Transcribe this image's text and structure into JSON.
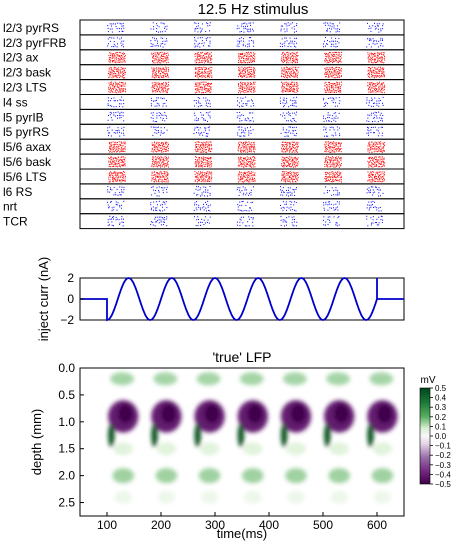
{
  "chart_data": [
    {
      "type": "raster",
      "title": "12.5 Hz stimulus",
      "populations": [
        {
          "name": "l2/3 pyrRS",
          "color": "#0000ff"
        },
        {
          "name": "l2/3 pyrFRB",
          "color": "#0000ff"
        },
        {
          "name": "l2/3 ax",
          "color": "#ff0000"
        },
        {
          "name": "l2/3 bask",
          "color": "#ff0000"
        },
        {
          "name": "l2/3 LTS",
          "color": "#ff0000"
        },
        {
          "name": "l4 ss",
          "color": "#0000ff"
        },
        {
          "name": "l5 pyrIB",
          "color": "#0000ff"
        },
        {
          "name": "l5 pyrRS",
          "color": "#0000ff"
        },
        {
          "name": "l5/6 axax",
          "color": "#ff0000"
        },
        {
          "name": "l5/6 bask",
          "color": "#ff0000"
        },
        {
          "name": "l5/6 LTS",
          "color": "#ff0000"
        },
        {
          "name": "l6 RS",
          "color": "#0000ff"
        },
        {
          "name": "nrt",
          "color": "#0000ff"
        },
        {
          "name": "TCR",
          "color": "#0000ff"
        }
      ],
      "burst_onsets_ms": [
        100,
        180,
        260,
        340,
        420,
        500,
        580
      ],
      "xlim": [
        50,
        650
      ]
    },
    {
      "type": "line",
      "xlabel": "",
      "ylabel": "inject curr (nA)",
      "series_color": "#0000cc",
      "frequency_hz": 12.5,
      "amplitude_na": 2,
      "stim_start_ms": 100,
      "stim_end_ms": 600,
      "yticks": [
        "2",
        "0",
        "−2"
      ],
      "ylim": [
        -2,
        2
      ],
      "xlim": [
        50,
        650
      ]
    },
    {
      "type": "heatmap",
      "title": "'true' LFP",
      "xlabel": "time(ms)",
      "ylabel": "depth (mm)",
      "xticks": [
        "100",
        "200",
        "300",
        "400",
        "500",
        "600"
      ],
      "xtick_values": [
        100,
        200,
        300,
        400,
        500,
        600
      ],
      "yticks": [
        "0.0",
        "0.5",
        "1.0",
        "1.5",
        "2.0",
        "2.5"
      ],
      "ytick_values": [
        0.0,
        0.5,
        1.0,
        1.5,
        2.0,
        2.5
      ],
      "xlim": [
        50,
        650
      ],
      "ylim": [
        0.0,
        2.75
      ],
      "colormap": "PRGn",
      "colorbar": {
        "label": "mV",
        "ticks": [
          "0.5",
          "0.4",
          "0.3",
          "0.2",
          "0.1",
          "0.0",
          "−0.1",
          "−0.2",
          "−0.3",
          "−0.4",
          "−0.5"
        ],
        "range": [
          -0.5,
          0.5
        ]
      },
      "cycle_onsets_ms": [
        100,
        180,
        260,
        340,
        420,
        500,
        580
      ],
      "features": [
        {
          "depth_mm": [
            0.05,
            0.35
          ],
          "value_mv": 0.15
        },
        {
          "depth_mm": [
            0.6,
            1.15
          ],
          "value_mv": -0.4
        },
        {
          "depth_mm": [
            1.05,
            1.45
          ],
          "value_mv": 0.45
        },
        {
          "depth_mm": [
            1.85,
            2.15
          ],
          "value_mv": 0.15
        }
      ]
    }
  ]
}
